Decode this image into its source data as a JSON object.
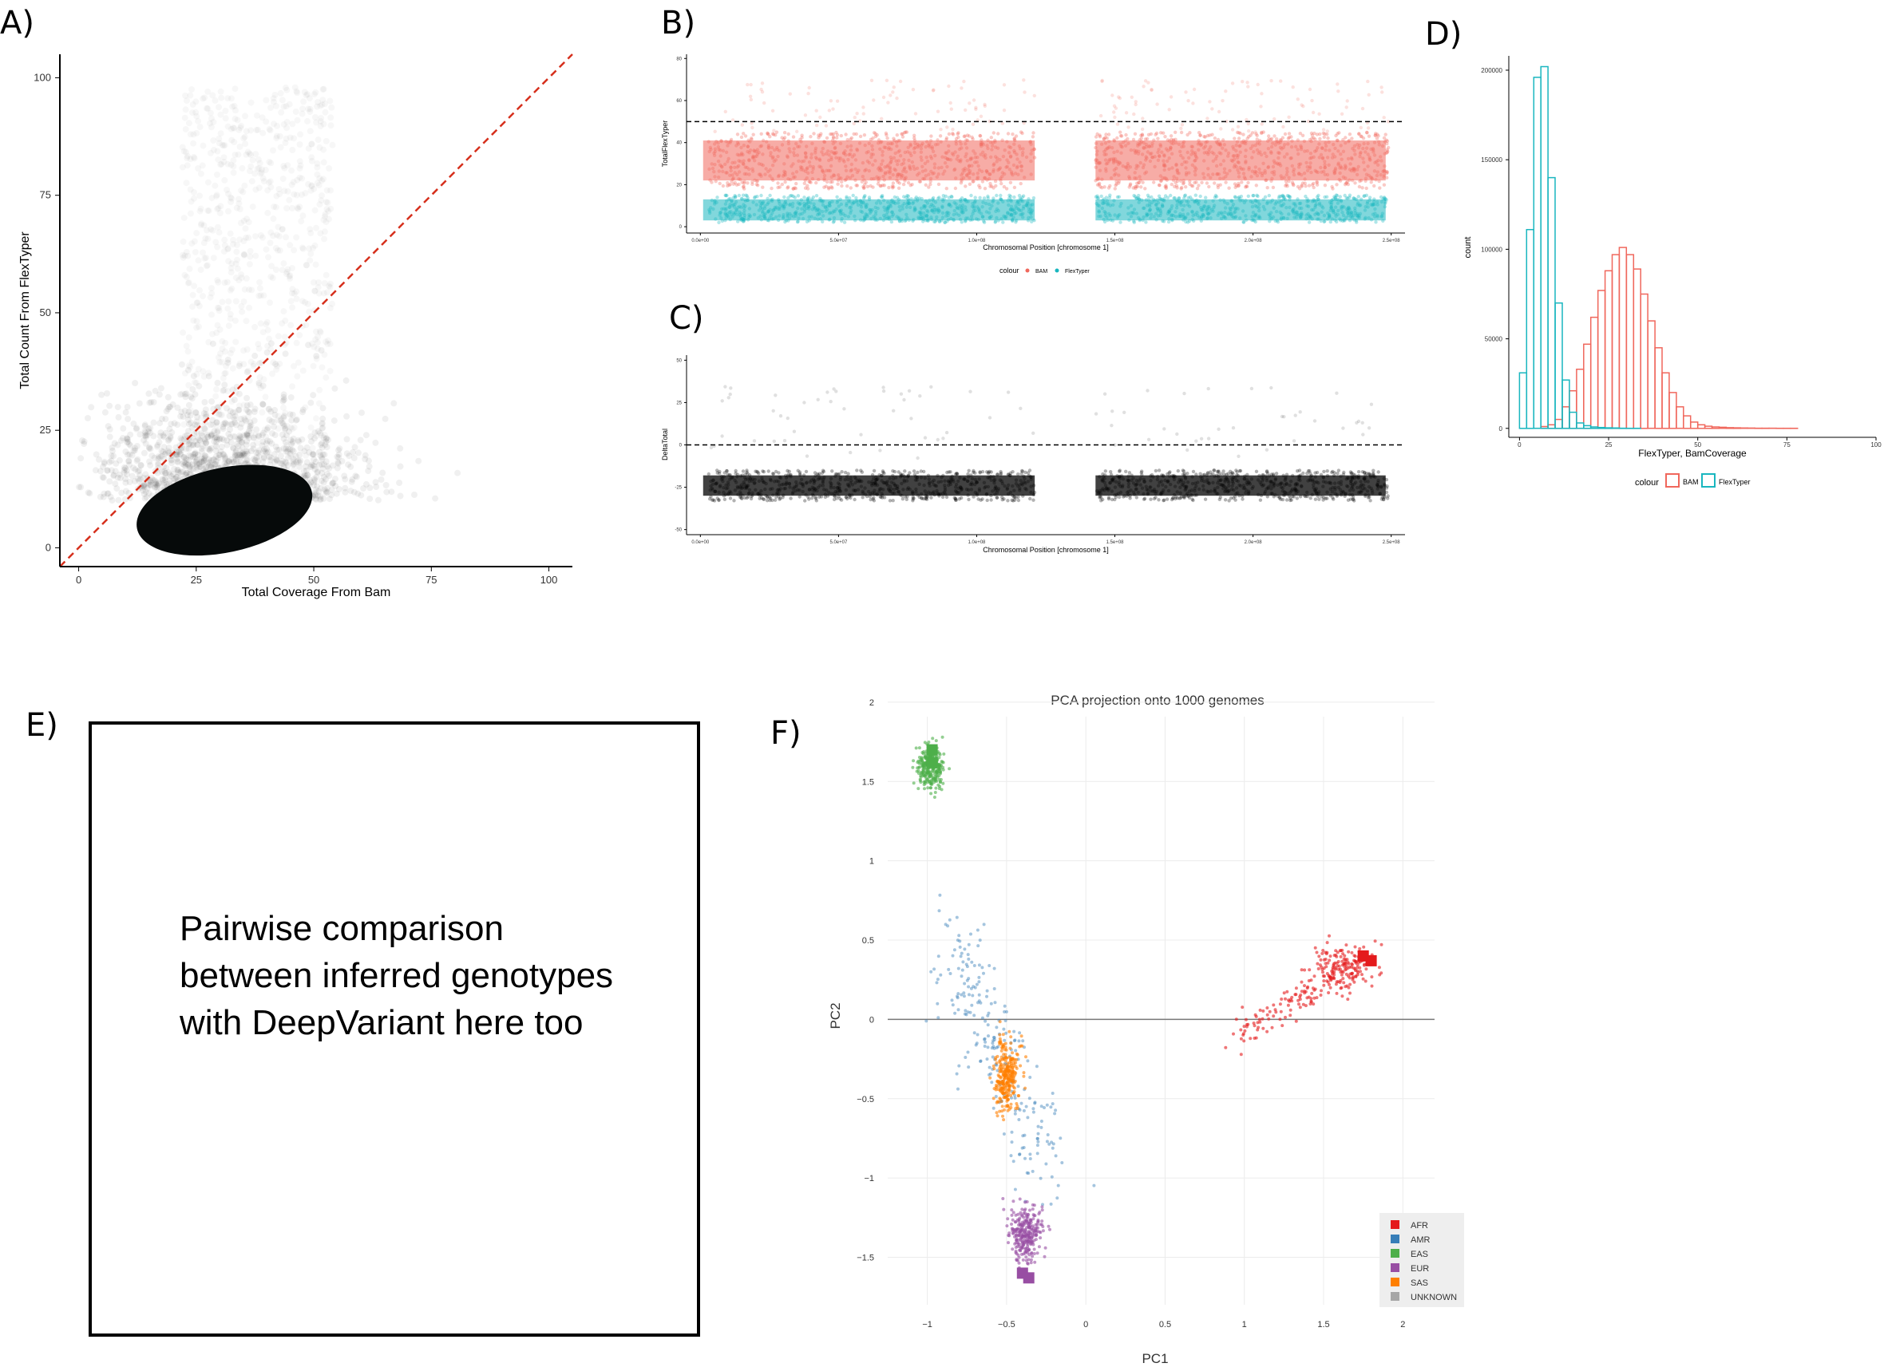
{
  "panel_labels": {
    "a": "A)",
    "b": "B)",
    "c": "C)",
    "d": "D)",
    "e": "E)",
    "f": "F)"
  },
  "colors": {
    "bam": "#F0675C",
    "flextyper": "#19B6BF",
    "afr": "#E41A1C",
    "amr": "#377EB8",
    "eas": "#4DAF4A",
    "eur": "#984EA3",
    "sas": "#FF7F00",
    "unknown": "#A6A6A6",
    "diagonal": "#D6301D"
  },
  "chart_data": [
    {
      "id": "A",
      "type": "scatter",
      "title": "",
      "xlabel": "Total Coverage From Bam",
      "ylabel": "Total Count From FlexTyper",
      "xlim": [
        -4,
        105
      ],
      "ylim": [
        -4,
        105
      ],
      "xticks": [
        "0",
        "25",
        "50",
        "75",
        "100"
      ],
      "yticks": [
        "0",
        "25",
        "50",
        "75",
        "100"
      ],
      "reference_line": {
        "style": "dashed",
        "x": [
          -4,
          105
        ],
        "y": [
          -4,
          105
        ]
      },
      "density_core": {
        "center": [
          31,
          8
        ],
        "radius": [
          19,
          9
        ]
      },
      "grid": false
    },
    {
      "id": "B",
      "type": "scatter",
      "title": "",
      "xlabel": "Chromosomal Position [chromosome 1]",
      "ylabel": "TotalFlexTyper",
      "xlim": [
        -5000000,
        255000000
      ],
      "ylim": [
        -3,
        82
      ],
      "xticks": [
        "0.0e+00",
        "5.0e+07",
        "1.0e+08",
        "1.5e+08",
        "2.0e+08",
        "2.5e+08"
      ],
      "yticks": [
        "0",
        "20",
        "40",
        "60",
        "80"
      ],
      "hline": 50,
      "gap": [
        121000000,
        143000000
      ],
      "series": [
        {
          "name": "BAM",
          "band": [
            18,
            45
          ]
        },
        {
          "name": "FlexTyper",
          "band": [
            2,
            15
          ]
        }
      ],
      "legend": {
        "title": "colour",
        "position": "bottom"
      },
      "grid": false
    },
    {
      "id": "C",
      "type": "scatter",
      "title": "",
      "xlabel": "Chromosomal Position [chromosome 1]",
      "ylabel": "DeltaTotal",
      "xlim": [
        -5000000,
        255000000
      ],
      "ylim": [
        -53,
        53
      ],
      "xticks": [
        "0.0e+00",
        "5.0e+07",
        "1.0e+08",
        "1.5e+08",
        "2.0e+08",
        "2.5e+08"
      ],
      "yticks": [
        "-50",
        "-25",
        "0",
        "25",
        "50"
      ],
      "hline": 0,
      "gap": [
        121000000,
        143000000
      ],
      "band": [
        -33,
        -15
      ],
      "grid": false
    },
    {
      "id": "D",
      "type": "bar",
      "title": "",
      "xlabel": "FlexTyper, BamCoverage",
      "ylabel": "count",
      "xlim": [
        -3,
        100
      ],
      "ylim": [
        -5000,
        208000
      ],
      "xticks": [
        "0",
        "25",
        "50",
        "75",
        "100"
      ],
      "yticks": [
        "0",
        "50000",
        "100000",
        "150000",
        "200000"
      ],
      "bin_start": 0,
      "bin_width": 2,
      "series": [
        {
          "name": "BAM",
          "values": [
            0,
            0,
            0,
            1000,
            2000,
            5000,
            12000,
            21000,
            33000,
            47000,
            62000,
            77000,
            88000,
            97000,
            101000,
            97000,
            89000,
            75000,
            60000,
            45000,
            31000,
            20000,
            12000,
            7000,
            3500,
            2000,
            1200,
            800,
            600,
            400,
            300,
            200,
            150,
            100,
            80,
            60,
            50,
            40,
            30,
            20,
            15,
            10,
            10,
            5,
            5,
            5,
            5,
            5,
            5,
            5
          ]
        },
        {
          "name": "FlexTyper",
          "values": [
            31000,
            111000,
            196000,
            202000,
            140000,
            70000,
            27000,
            9000,
            3000,
            1500,
            800,
            500,
            300,
            200,
            100,
            50,
            30,
            20,
            10,
            5
          ]
        }
      ],
      "legend": {
        "title": "colour",
        "position": "bottom"
      },
      "grid": false
    },
    {
      "id": "F",
      "type": "scatter",
      "title": "PCA projection onto 1000 genomes",
      "xlabel": "PC1",
      "ylabel": "PC2",
      "xlim": [
        -1.25,
        2.2
      ],
      "ylim": [
        -1.9,
        2.05
      ],
      "xticks": [
        "-1",
        "-0.5",
        "0",
        "0.5",
        "1",
        "1.5",
        "2"
      ],
      "yticks": [
        "2",
        "1.5",
        "1",
        "0.5",
        "0",
        "-0.5",
        "-1",
        "-1.5"
      ],
      "legend": {
        "position": "bottom-right"
      },
      "grid": true,
      "series": [
        {
          "name": "AFR",
          "center": [
            1.6,
            0.33
          ],
          "spread": [
            0.09,
            0.07
          ]
        },
        {
          "name": "AMR",
          "center": [
            -0.45,
            -0.6
          ],
          "spread": [
            0.18,
            0.35
          ]
        },
        {
          "name": "EAS",
          "center": [
            -0.98,
            1.6
          ],
          "spread": [
            0.04,
            0.07
          ]
        },
        {
          "name": "EUR",
          "center": [
            -0.38,
            -1.35
          ],
          "spread": [
            0.05,
            0.08
          ]
        },
        {
          "name": "SAS",
          "center": [
            -0.5,
            -0.35
          ],
          "spread": [
            0.04,
            0.12
          ]
        },
        {
          "name": "UNKNOWN",
          "center": [
            0,
            0
          ],
          "spread": [
            0,
            0
          ]
        }
      ],
      "highlighted_samples": [
        {
          "group": "EAS",
          "x": -0.97,
          "y": 1.7
        },
        {
          "group": "EAS",
          "x": -0.97,
          "y": 1.62
        },
        {
          "group": "AFR",
          "x": 1.75,
          "y": 0.4
        },
        {
          "group": "AFR",
          "x": 1.8,
          "y": 0.37
        },
        {
          "group": "EUR",
          "x": -0.4,
          "y": -1.6
        },
        {
          "group": "EUR",
          "x": -0.36,
          "y": -1.63
        }
      ]
    }
  ],
  "panel_e": {
    "lines": [
      "Pairwise comparison",
      "between inferred genotypes",
      "with DeepVariant here too"
    ]
  }
}
